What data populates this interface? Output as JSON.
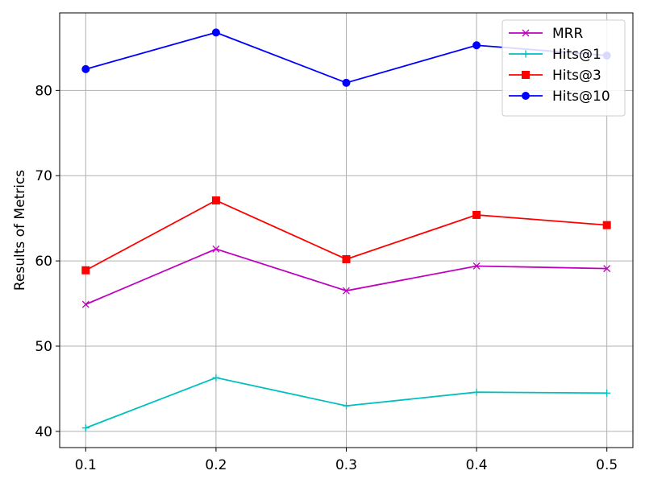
{
  "chart_data": {
    "type": "line",
    "title": "",
    "xlabel": "",
    "ylabel": "Results of Metrics",
    "x": [
      0.1,
      0.2,
      0.3,
      0.4,
      0.5
    ],
    "x_tick_labels": [
      "0.1",
      "0.2",
      "0.3",
      "0.4",
      "0.5"
    ],
    "y_ticks": [
      40,
      50,
      60,
      70,
      80
    ],
    "y_tick_labels": [
      "40",
      "50",
      "60",
      "70",
      "80"
    ],
    "xlim": [
      0.08,
      0.52
    ],
    "ylim": [
      38.1,
      89.1
    ],
    "grid": true,
    "legend_position": "top-right",
    "series": [
      {
        "name": "MRR",
        "color": "#bf00bf",
        "marker": "x",
        "values": [
          54.9,
          61.4,
          56.5,
          59.4,
          59.1
        ]
      },
      {
        "name": "Hits@1",
        "color": "#00bfbf",
        "marker": "+",
        "values": [
          40.4,
          46.3,
          43.0,
          44.6,
          44.5
        ]
      },
      {
        "name": "Hits@3",
        "color": "#ff0000",
        "marker": "square",
        "values": [
          58.9,
          67.1,
          60.2,
          65.4,
          64.2
        ]
      },
      {
        "name": "Hits@10",
        "color": "#0000ff",
        "marker": "circle",
        "values": [
          82.5,
          86.8,
          80.9,
          85.3,
          84.1
        ]
      }
    ]
  }
}
